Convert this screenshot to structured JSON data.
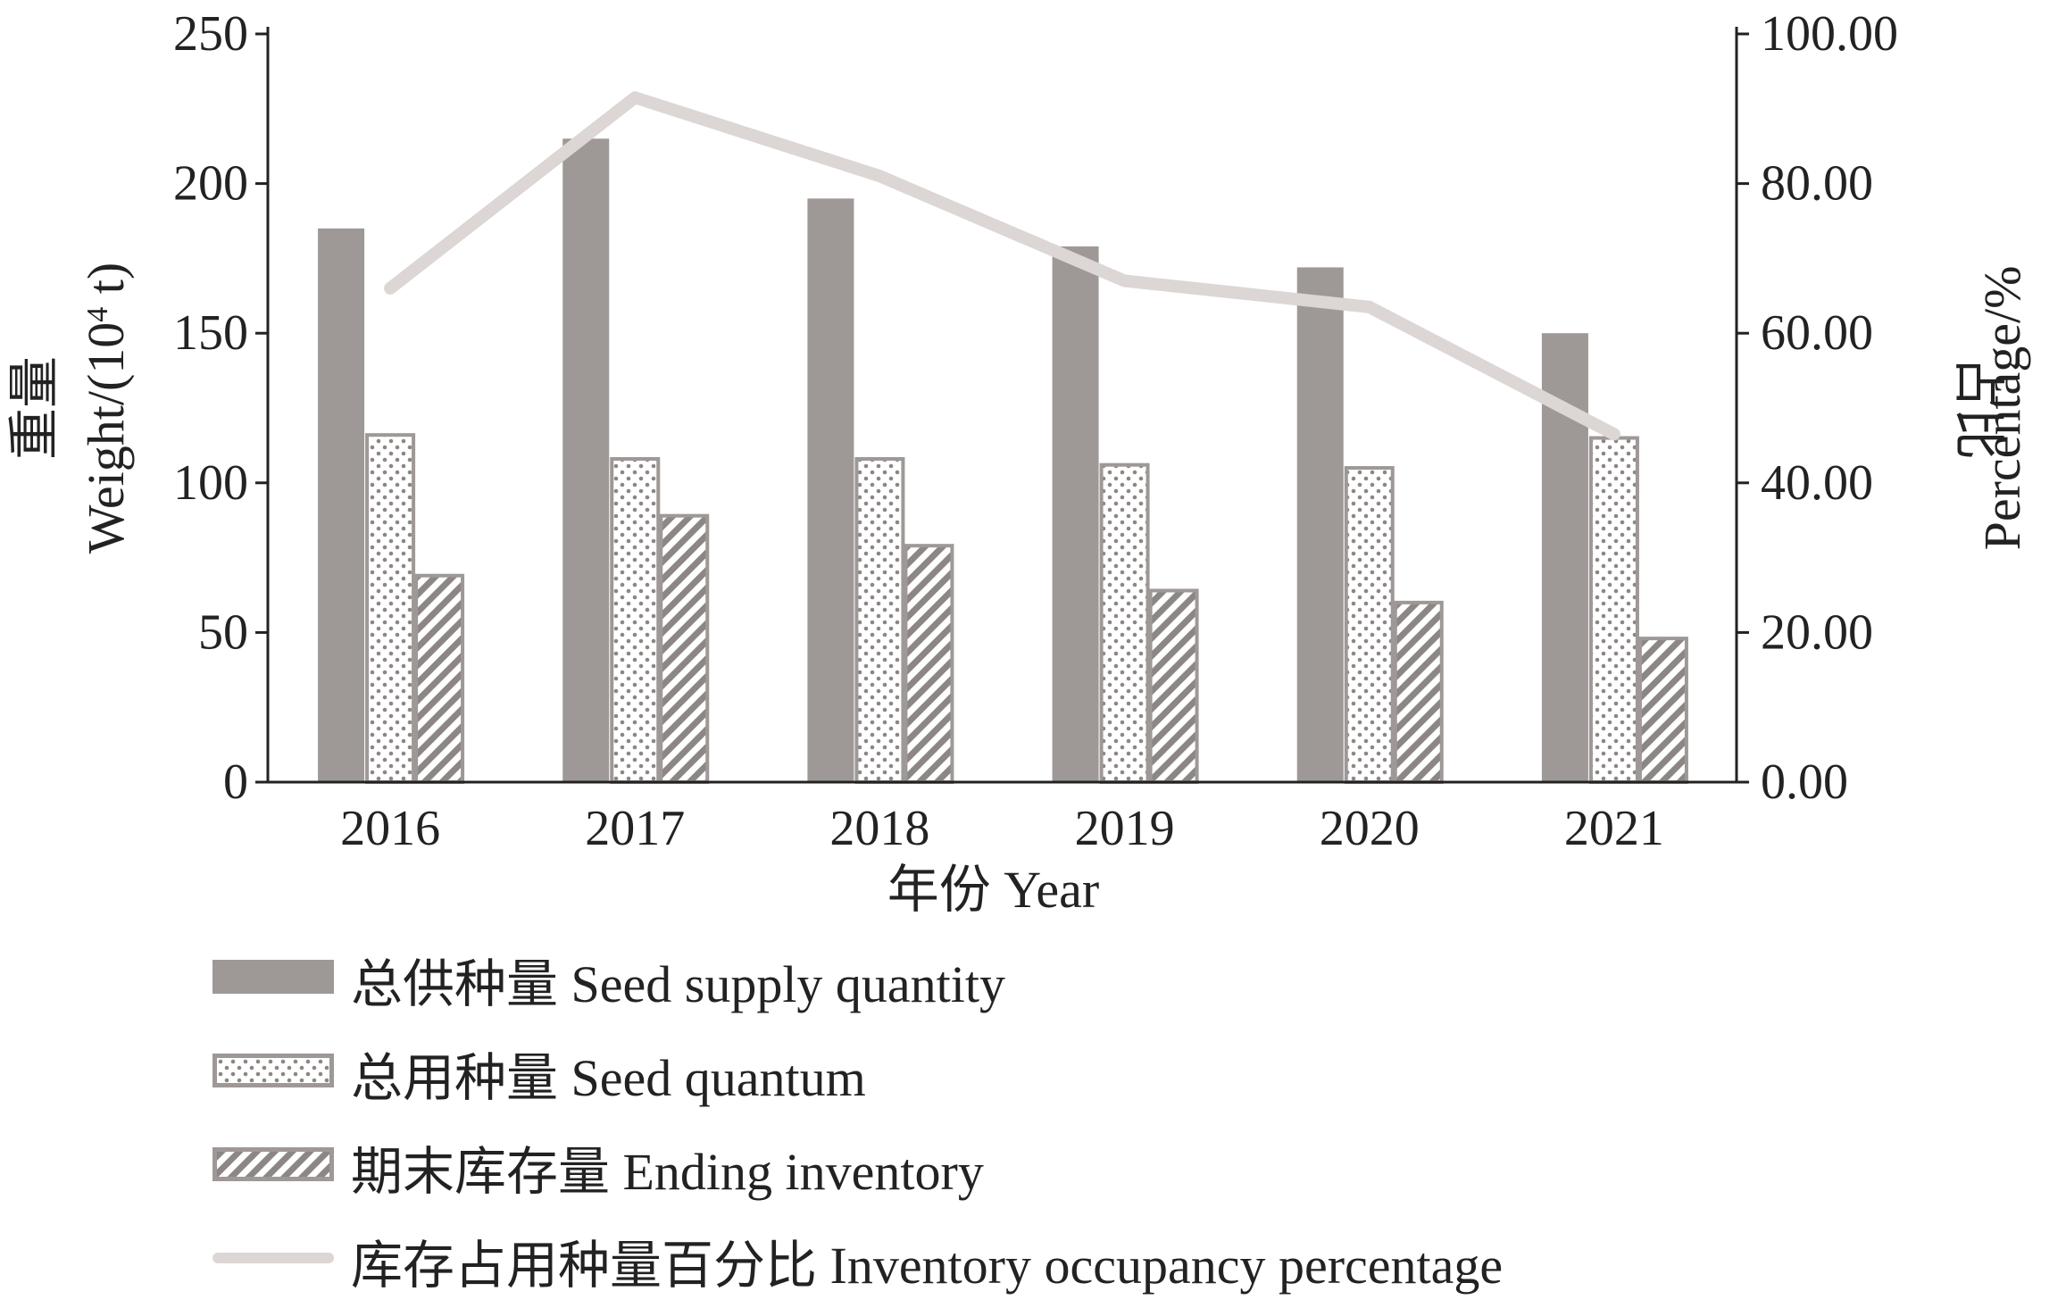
{
  "chart_data": {
    "type": "bar",
    "categories": [
      "2016",
      "2017",
      "2018",
      "2019",
      "2020",
      "2021"
    ],
    "series": [
      {
        "name": "总供种量 Seed supply quantity",
        "kind": "bar",
        "axis": "left",
        "values": [
          185,
          215,
          195,
          179,
          172,
          150
        ]
      },
      {
        "name": "总用种量 Seed quantum",
        "kind": "bar",
        "axis": "left",
        "values": [
          116,
          108,
          108,
          106,
          105,
          115
        ]
      },
      {
        "name": "期末库存量 Ending inventory",
        "kind": "bar",
        "axis": "left",
        "values": [
          69,
          89,
          79,
          64,
          60,
          48
        ]
      },
      {
        "name": "库存占用种量百分比 Inventory occupancy percentage",
        "kind": "line",
        "axis": "right",
        "values": [
          66,
          91.5,
          81,
          67,
          63.5,
          46.5
        ]
      }
    ],
    "xlabel": "年份 Year",
    "ylabel_cn": "重量",
    "ylabel_en": "Weight/(10",
    "ylabel_sup": "4",
    "ylabel_unit": " t)",
    "y2label_cn": "占比",
    "y2label_en": "Percentage/%",
    "ylim": [
      0,
      250
    ],
    "y2lim": [
      0,
      100
    ],
    "yticks": [
      "0",
      "50",
      "100",
      "150",
      "200",
      "250"
    ],
    "y2ticks": [
      "0.00",
      "20.00",
      "40.00",
      "60.00",
      "80.00",
      "100.00"
    ],
    "legend_position": "bottom",
    "colors": {
      "supply": "#9e9896",
      "pattern": "#9e9896",
      "line": "#dcd6d4",
      "axis": "#222222"
    }
  }
}
